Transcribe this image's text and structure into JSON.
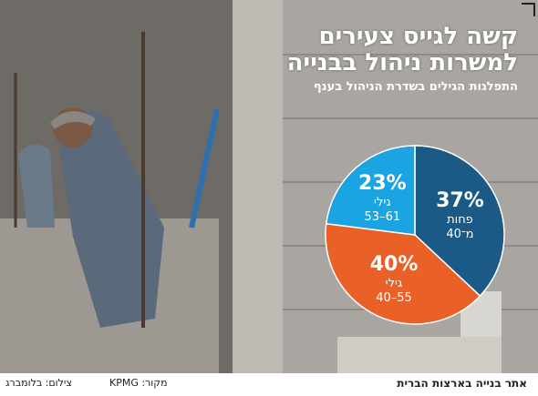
{
  "chart_data": {
    "type": "pie",
    "title": "קשה לגייס צעירים\nלמשרות ניהול בבנייה",
    "subtitle": "התפלגות הגילים בשדרת הניהול בענף",
    "categories": [
      "פחות\nמ־40",
      "גילי\n55–40",
      "גילי\n61–53"
    ],
    "values": [
      37,
      40,
      23
    ],
    "value_labels": [
      "37%",
      "40%",
      "23%"
    ],
    "colors": [
      "#1b5a86",
      "#ea6128",
      "#1ba3e2"
    ]
  },
  "caption": "אתר בנייה בארצות הברית",
  "source": "מקור: KPMG",
  "photo_credit": "צילום: בלומברג"
}
